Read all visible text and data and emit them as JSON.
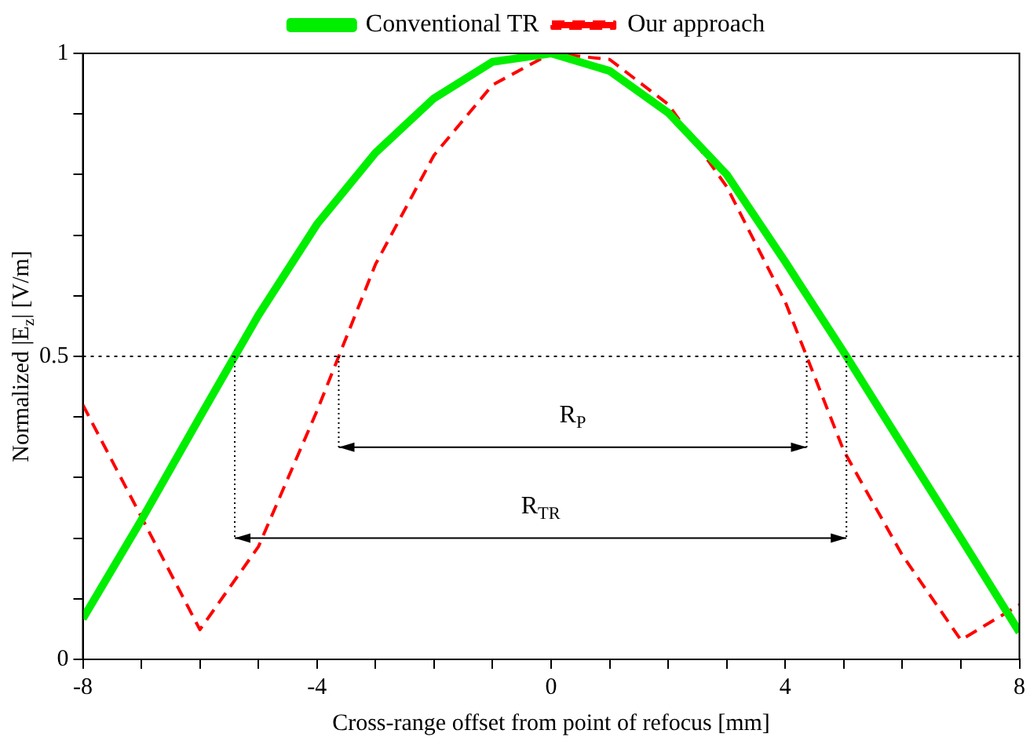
{
  "chart_data": {
    "type": "line",
    "xlabel": "Cross-range offset from point of refocus [mm]",
    "ylabel": "Normalized |E$_{z}$| [V/m]",
    "x": [
      -8,
      -7,
      -6,
      -5,
      -4,
      -3,
      -2,
      -1,
      0,
      1,
      2,
      3,
      4,
      5,
      6,
      7,
      8
    ],
    "series": [
      {
        "name": "Conventional TR",
        "color": "#00ee00",
        "line_style": "solid",
        "values": [
          0.067,
          0.23,
          0.4,
          0.568,
          0.718,
          0.836,
          0.926,
          0.986,
          1.0,
          0.971,
          0.902,
          0.8,
          0.656,
          0.507,
          0.353,
          0.2,
          0.045
        ]
      },
      {
        "name": "Our approach",
        "color": "#ff0000",
        "line_style": "dashed",
        "values": [
          0.42,
          0.235,
          0.049,
          0.186,
          0.41,
          0.652,
          0.832,
          0.948,
          1.0,
          0.99,
          0.916,
          0.78,
          0.59,
          0.344,
          0.172,
          0.032,
          0.09
        ]
      }
    ],
    "xlim": [
      -8,
      8
    ],
    "xticks": [
      -8,
      {
        "value": -7,
        "label": null
      },
      {
        "value": -6,
        "label": null
      },
      {
        "value": -5,
        "label": null
      },
      -4,
      {
        "value": -3,
        "label": null
      },
      {
        "value": -2,
        "label": null
      },
      {
        "value": -1,
        "label": null
      },
      0,
      {
        "value": 1,
        "label": null
      },
      {
        "value": 2,
        "label": null
      },
      {
        "value": 3,
        "label": null
      },
      4,
      {
        "value": 5,
        "label": null
      },
      {
        "value": 6,
        "label": null
      },
      {
        "value": 7,
        "label": null
      },
      8
    ],
    "ylim": [
      0,
      1
    ],
    "yticks": [
      0,
      {
        "value": 0.1,
        "label": null
      },
      {
        "value": 0.2,
        "label": null
      },
      {
        "value": 0.3,
        "label": null
      },
      {
        "value": 0.4,
        "label": null
      },
      0.5,
      {
        "value": 0.6,
        "label": null
      },
      {
        "value": 0.7,
        "label": null
      },
      {
        "value": 0.8,
        "label": null
      },
      {
        "value": 0.9,
        "label": null
      },
      1
    ],
    "ref_lines": [
      {
        "axis": "y",
        "value": 0.5,
        "color": "#000000",
        "line_style": "dotted"
      }
    ],
    "annotations": [
      "R$_{TR}$",
      "R$_{P}$"
    ],
    "legend": "top",
    "grid": false,
    "marker": "none"
  }
}
